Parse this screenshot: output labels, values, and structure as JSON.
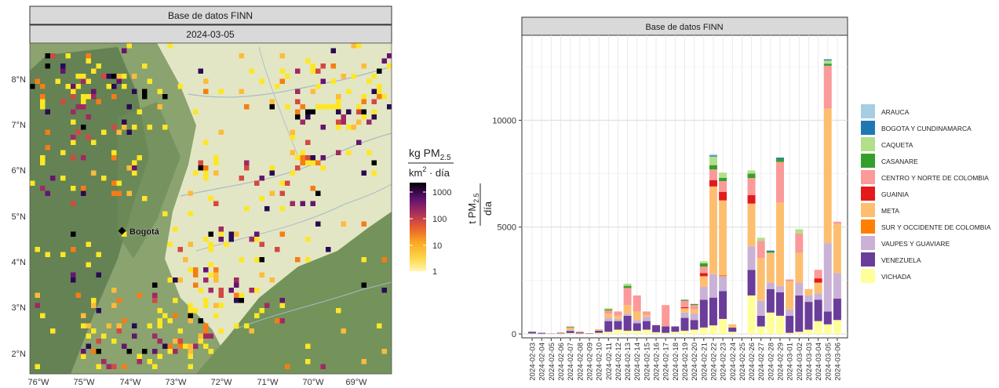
{
  "map_panel": {
    "strip_title": "Base de datos FINN",
    "date": "2024-03-05",
    "city_label": "Bogotá",
    "lat_ticks": [
      "2°N",
      "3°N",
      "4°N",
      "5°N",
      "6°N",
      "7°N",
      "8°N"
    ],
    "lon_ticks": [
      "76°W",
      "75°W",
      "74°W",
      "73°W",
      "72°W",
      "71°W",
      "70°W",
      "69°W"
    ],
    "colorbar": {
      "unit_top": "kg PM",
      "unit_top_sub": "2.5",
      "unit_bottom": "km",
      "unit_bottom_sup": "2",
      "unit_bottom_rest": " · día",
      "ticks": [
        "1000",
        "100",
        "10",
        "1"
      ],
      "scale": "log",
      "colors": [
        "#fde725",
        "#fdbb3a",
        "#f57d15",
        "#d44842",
        "#9f2a63",
        "#65156e",
        "#280b53",
        "#000004"
      ]
    },
    "colors": {
      "terrain_light": "#dfe3bf",
      "terrain_green": "#8aa46a",
      "mountain": "#5f7f52",
      "amazon": "#6e8f58"
    }
  },
  "chart_data": {
    "type": "bar",
    "stacked": true,
    "title": "Base de datos FINN",
    "ylabel_main": "t PM",
    "ylabel_sub": "2.5",
    "ylabel_den": "día",
    "ylim": [
      0,
      13500
    ],
    "yticks": [
      0,
      5000,
      10000
    ],
    "ytick_labels": [
      "0",
      "5000",
      "10000"
    ],
    "grid": true,
    "legend_position": "right",
    "categories": [
      "2024-02-03",
      "2024-02-04",
      "2024-02-05",
      "2024-02-06",
      "2024-02-07",
      "2024-02-08",
      "2024-02-09",
      "2024-02-10",
      "2024-02-11",
      "2024-02-12",
      "2024-02-13",
      "2024-02-14",
      "2024-02-15",
      "2024-02-16",
      "2024-02-17",
      "2024-02-18",
      "2024-02-19",
      "2024-02-20",
      "2024-02-21",
      "2024-02-22",
      "2024-02-23",
      "2024-02-24",
      "2024-02-25",
      "2024-02-26",
      "2024-02-27",
      "2024-02-28",
      "2024-02-29",
      "2024-03-01",
      "2024-03-02",
      "2024-03-03",
      "2024-03-04",
      "2024-03-05",
      "2024-03-06"
    ],
    "series": [
      {
        "name": "VICHADA",
        "color": "#ffff99",
        "values": [
          20,
          10,
          10,
          20,
          40,
          20,
          10,
          50,
          100,
          200,
          150,
          150,
          200,
          80,
          50,
          100,
          150,
          200,
          300,
          400,
          700,
          100,
          0,
          1800,
          350,
          1000,
          850,
          50,
          100,
          200,
          600,
          450,
          650
        ]
      },
      {
        "name": "VENEZUELA",
        "color": "#6a3d9a",
        "values": [
          80,
          40,
          10,
          30,
          100,
          50,
          20,
          100,
          500,
          400,
          700,
          350,
          400,
          330,
          300,
          250,
          600,
          450,
          1300,
          1300,
          1300,
          200,
          0,
          1200,
          500,
          1100,
          1100,
          800,
          1700,
          1300,
          1000,
          600,
          1000
        ]
      },
      {
        "name": "VAUPES Y GUAVIARE",
        "color": "#cab2d6",
        "values": [
          0,
          0,
          0,
          10,
          40,
          0,
          0,
          20,
          150,
          100,
          100,
          150,
          200,
          0,
          0,
          0,
          250,
          300,
          600,
          1100,
          700,
          0,
          0,
          1100,
          700,
          300,
          300,
          300,
          600,
          300,
          300,
          3200,
          1200
        ]
      },
      {
        "name": "SUR Y OCCIDENTE DE COLOMBIA",
        "color": "#ff7f00",
        "values": [
          0,
          0,
          0,
          0,
          0,
          0,
          0,
          0,
          0,
          0,
          0,
          0,
          0,
          0,
          0,
          0,
          0,
          0,
          0,
          0,
          50,
          0,
          0,
          0,
          0,
          0,
          0,
          0,
          0,
          0,
          0,
          0,
          0
        ]
      },
      {
        "name": "META",
        "color": "#fdbf6f",
        "values": [
          0,
          0,
          0,
          20,
          80,
          30,
          10,
          50,
          200,
          150,
          400,
          400,
          100,
          0,
          0,
          0,
          200,
          200,
          500,
          4100,
          3500,
          150,
          0,
          2000,
          2000,
          1400,
          3900,
          1300,
          1400,
          300,
          500,
          6300,
          2300
        ]
      },
      {
        "name": "GUAINIA",
        "color": "#e31a1c",
        "values": [
          0,
          0,
          0,
          0,
          0,
          0,
          0,
          0,
          0,
          0,
          0,
          0,
          0,
          0,
          0,
          0,
          50,
          0,
          150,
          300,
          400,
          0,
          0,
          400,
          0,
          0,
          0,
          0,
          0,
          0,
          200,
          0,
          0
        ]
      },
      {
        "name": "CENTRO Y NORTE DE COLOMBIA",
        "color": "#fb9a99",
        "values": [
          0,
          0,
          0,
          0,
          50,
          20,
          0,
          0,
          150,
          200,
          800,
          750,
          150,
          0,
          1000,
          0,
          300,
          200,
          300,
          500,
          500,
          0,
          0,
          800,
          800,
          0,
          1900,
          100,
          900,
          0,
          400,
          2000,
          100
        ]
      },
      {
        "name": "CASANARE",
        "color": "#33a02c",
        "values": [
          0,
          0,
          0,
          0,
          20,
          0,
          0,
          0,
          50,
          0,
          100,
          0,
          0,
          0,
          0,
          0,
          50,
          50,
          150,
          200,
          150,
          0,
          0,
          200,
          0,
          50,
          150,
          0,
          0,
          0,
          0,
          100,
          0
        ]
      },
      {
        "name": "CAQUETA",
        "color": "#b2df8a",
        "values": [
          0,
          0,
          0,
          0,
          30,
          0,
          0,
          0,
          50,
          0,
          100,
          0,
          0,
          0,
          0,
          0,
          0,
          0,
          100,
          400,
          250,
          0,
          0,
          150,
          150,
          0,
          0,
          0,
          200,
          0,
          0,
          150,
          0
        ]
      },
      {
        "name": "BOGOTA Y CUNDINAMARCA",
        "color": "#1f78b4",
        "values": [
          0,
          0,
          0,
          0,
          0,
          0,
          0,
          0,
          0,
          0,
          0,
          0,
          0,
          0,
          0,
          0,
          0,
          0,
          0,
          50,
          0,
          0,
          0,
          0,
          0,
          50,
          50,
          0,
          0,
          0,
          0,
          50,
          0
        ]
      },
      {
        "name": "ARAUCA",
        "color": "#a6cee3",
        "values": [
          0,
          0,
          0,
          0,
          0,
          0,
          0,
          0,
          0,
          0,
          0,
          0,
          0,
          0,
          0,
          0,
          0,
          0,
          0,
          50,
          0,
          0,
          0,
          0,
          0,
          0,
          0,
          0,
          0,
          0,
          0,
          0,
          0
        ]
      }
    ],
    "legend": [
      "ARAUCA",
      "BOGOTA Y CUNDINAMARCA",
      "CAQUETA",
      "CASANARE",
      "CENTRO Y NORTE DE COLOMBIA",
      "GUAINIA",
      "META",
      "SUR Y OCCIDENTE DE COLOMBIA",
      "VAUPES Y GUAVIARE",
      "VENEZUELA",
      "VICHADA"
    ]
  }
}
